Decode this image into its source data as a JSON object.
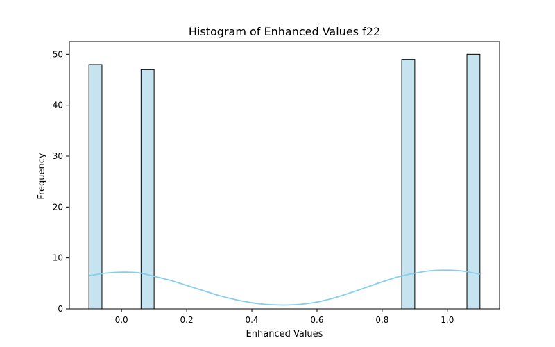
{
  "chart_data": {
    "type": "bar",
    "title": "Histogram of Enhanced Values f22",
    "xlabel": "Enhanced Values",
    "ylabel": "Frequency",
    "xlim": [
      -0.16,
      1.16
    ],
    "ylim": [
      0,
      52.5
    ],
    "x_ticks": [
      "0.0",
      "0.2",
      "0.4",
      "0.6",
      "0.8",
      "1.0"
    ],
    "x_tick_values": [
      0.0,
      0.2,
      0.4,
      0.6,
      0.8,
      1.0
    ],
    "y_ticks": [
      "0",
      "10",
      "20",
      "30",
      "40",
      "50"
    ],
    "y_tick_values": [
      0,
      10,
      20,
      30,
      40,
      50
    ],
    "bins": [
      {
        "x0": -0.1,
        "x1": -0.06,
        "count": 48
      },
      {
        "x0": 0.06,
        "x1": 0.1,
        "count": 47
      },
      {
        "x0": 0.86,
        "x1": 0.9,
        "count": 49
      },
      {
        "x0": 1.06,
        "x1": 1.1,
        "count": 50
      }
    ],
    "kde": {
      "x": [
        -0.1,
        -0.05,
        0.0,
        0.05,
        0.1,
        0.15,
        0.2,
        0.25,
        0.3,
        0.35,
        0.4,
        0.45,
        0.5,
        0.55,
        0.6,
        0.65,
        0.7,
        0.75,
        0.8,
        0.85,
        0.9,
        0.95,
        1.0,
        1.05,
        1.1
      ],
      "y": [
        6.5,
        7.0,
        7.2,
        7.1,
        6.4,
        5.6,
        4.6,
        3.6,
        2.6,
        1.8,
        1.2,
        0.85,
        0.75,
        0.9,
        1.35,
        2.1,
        3.1,
        4.2,
        5.3,
        6.3,
        7.0,
        7.5,
        7.6,
        7.4,
        6.8
      ]
    },
    "grid": false,
    "colors": {
      "bar_fill": "#c5e4f0",
      "bar_edge": "#000000",
      "kde_line": "#87ceeb"
    }
  }
}
